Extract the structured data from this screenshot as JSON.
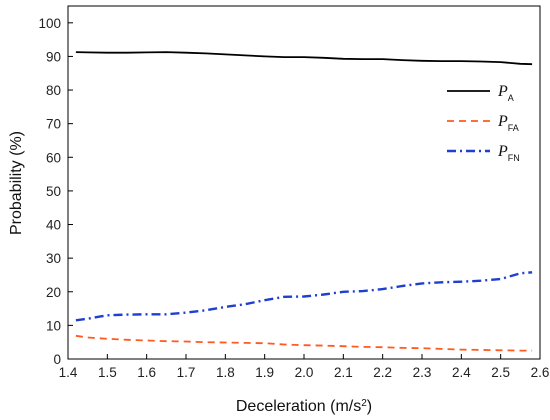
{
  "chart_data": {
    "type": "line",
    "title": "",
    "xlabel": "Deceleration (m/s",
    "xlabel_sup": "2",
    "xlabel_end": ")",
    "ylabel": "Probability (%)",
    "xlim": [
      1.4,
      2.6
    ],
    "ylim": [
      0,
      105
    ],
    "xticks": [
      "1.4",
      "1.5",
      "1.6",
      "1.7",
      "1.8",
      "1.9",
      "2.0",
      "2.1",
      "2.2",
      "2.3",
      "2.4",
      "2.5",
      "2.6"
    ],
    "yticks": [
      "0",
      "10",
      "20",
      "30",
      "40",
      "50",
      "60",
      "70",
      "80",
      "90",
      "100"
    ],
    "grid": false,
    "legend_position": "top-right",
    "series": [
      {
        "name": "P",
        "name_sub": "A",
        "color": "#000000",
        "style": "solid",
        "x": [
          1.42,
          1.45,
          1.5,
          1.55,
          1.6,
          1.65,
          1.7,
          1.75,
          1.8,
          1.85,
          1.9,
          1.95,
          2.0,
          2.05,
          2.1,
          2.15,
          2.2,
          2.25,
          2.3,
          2.35,
          2.4,
          2.45,
          2.5,
          2.55,
          2.58
        ],
        "y": [
          91.3,
          91.2,
          91.1,
          91.1,
          91.2,
          91.3,
          91.1,
          90.9,
          90.6,
          90.3,
          90.0,
          89.8,
          89.8,
          89.6,
          89.3,
          89.2,
          89.2,
          88.9,
          88.7,
          88.6,
          88.6,
          88.5,
          88.3,
          87.8,
          87.7
        ]
      },
      {
        "name": "P",
        "name_sub": "FA",
        "color": "#ff5a1f",
        "style": "dash",
        "x": [
          1.42,
          1.45,
          1.5,
          1.55,
          1.6,
          1.65,
          1.7,
          1.75,
          1.8,
          1.85,
          1.9,
          1.95,
          2.0,
          2.05,
          2.1,
          2.15,
          2.2,
          2.25,
          2.3,
          2.35,
          2.4,
          2.45,
          2.5,
          2.55,
          2.58
        ],
        "y": [
          6.9,
          6.4,
          6.0,
          5.7,
          5.5,
          5.3,
          5.2,
          5.0,
          4.9,
          4.8,
          4.7,
          4.3,
          4.1,
          4.0,
          3.8,
          3.6,
          3.5,
          3.3,
          3.2,
          3.0,
          2.8,
          2.7,
          2.6,
          2.5,
          2.5
        ]
      },
      {
        "name": "P",
        "name_sub": "FN",
        "color": "#1f3fcf",
        "style": "dashdot",
        "x": [
          1.42,
          1.45,
          1.5,
          1.55,
          1.6,
          1.65,
          1.7,
          1.75,
          1.8,
          1.85,
          1.9,
          1.95,
          2.0,
          2.05,
          2.1,
          2.15,
          2.2,
          2.25,
          2.3,
          2.35,
          2.4,
          2.45,
          2.5,
          2.55,
          2.58
        ],
        "y": [
          11.5,
          12.0,
          13.0,
          13.2,
          13.3,
          13.3,
          13.8,
          14.5,
          15.5,
          16.3,
          17.5,
          18.5,
          18.6,
          19.2,
          20.0,
          20.2,
          20.8,
          21.7,
          22.5,
          22.8,
          23.0,
          23.3,
          23.8,
          25.5,
          25.8
        ]
      }
    ]
  }
}
